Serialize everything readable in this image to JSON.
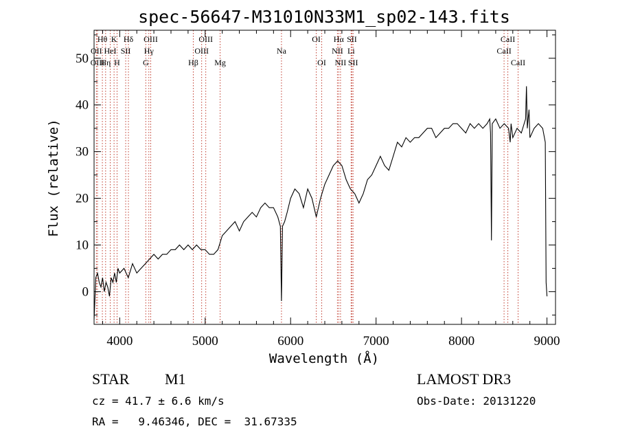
{
  "chart_data": {
    "type": "line",
    "title": "spec-56647-M31010N33M1_sp02-143.fits",
    "xlabel": "Wavelength (Å)",
    "ylabel": "Flux (relative)",
    "xlim": [
      3700,
      9100
    ],
    "ylim": [
      -7,
      56
    ],
    "xticks": [
      4000,
      5000,
      6000,
      7000,
      8000,
      9000
    ],
    "yticks": [
      0,
      10,
      20,
      30,
      40,
      50
    ],
    "spectrum": {
      "name": "flux",
      "x": [
        3700,
        3720,
        3740,
        3760,
        3780,
        3800,
        3820,
        3840,
        3860,
        3880,
        3900,
        3920,
        3940,
        3960,
        3980,
        4000,
        4050,
        4100,
        4150,
        4200,
        4250,
        4300,
        4350,
        4400,
        4450,
        4500,
        4550,
        4600,
        4650,
        4700,
        4750,
        4800,
        4850,
        4900,
        4950,
        5000,
        5050,
        5100,
        5150,
        5200,
        5250,
        5300,
        5350,
        5400,
        5450,
        5500,
        5550,
        5600,
        5650,
        5700,
        5750,
        5800,
        5850,
        5880,
        5893,
        5905,
        5930,
        5960,
        6000,
        6050,
        6100,
        6150,
        6200,
        6250,
        6300,
        6350,
        6400,
        6450,
        6500,
        6550,
        6600,
        6650,
        6700,
        6750,
        6800,
        6850,
        6900,
        6950,
        7000,
        7050,
        7100,
        7150,
        7200,
        7250,
        7300,
        7350,
        7400,
        7450,
        7500,
        7550,
        7600,
        7650,
        7700,
        7750,
        7800,
        7850,
        7900,
        7950,
        8000,
        8050,
        8100,
        8150,
        8200,
        8250,
        8300,
        8330,
        8340,
        8350,
        8360,
        8400,
        8450,
        8500,
        8550,
        8570,
        8580,
        8600,
        8650,
        8700,
        8750,
        8760,
        8770,
        8790,
        8800,
        8850,
        8900,
        8950,
        8980,
        8990,
        9000
      ],
      "y": [
        -6,
        3,
        4,
        2,
        1,
        3,
        0,
        2,
        1,
        -1,
        3,
        2,
        4,
        2,
        5,
        4,
        5,
        3,
        6,
        4,
        5,
        6,
        7,
        8,
        7,
        8,
        8,
        9,
        9,
        10,
        9,
        10,
        9,
        10,
        9,
        9,
        8,
        8,
        9,
        12,
        13,
        14,
        15,
        13,
        15,
        16,
        17,
        16,
        18,
        19,
        18,
        18,
        16,
        14,
        -2,
        14,
        15,
        17,
        20,
        22,
        21,
        18,
        22,
        20,
        16,
        20,
        23,
        25,
        27,
        28,
        27,
        24,
        22,
        21,
        19,
        21,
        24,
        25,
        27,
        29,
        27,
        26,
        29,
        32,
        31,
        33,
        32,
        33,
        33,
        34,
        35,
        35,
        33,
        34,
        35,
        35,
        36,
        36,
        35,
        34,
        36,
        35,
        36,
        35,
        36,
        37,
        34,
        11,
        36,
        37,
        35,
        36,
        35,
        32,
        36,
        33,
        35,
        34,
        37,
        44,
        35,
        39,
        33,
        35,
        36,
        35,
        32,
        2,
        -1
      ]
    },
    "spectral_lines": [
      {
        "label": "Hθ",
        "x": 3797,
        "row": 0
      },
      {
        "label": "OII",
        "x": 3727,
        "row": 1
      },
      {
        "label": "OIII",
        "x": 3740,
        "row": 2
      },
      {
        "label": "Hη",
        "x": 3835,
        "row": 2
      },
      {
        "label": "K",
        "x": 3934,
        "row": 0
      },
      {
        "label": "HeI",
        "x": 3889,
        "row": 1
      },
      {
        "label": "SII",
        "x": 4070,
        "row": 1
      },
      {
        "label": "H",
        "x": 3969,
        "row": 2
      },
      {
        "label": "Hδ",
        "x": 4102,
        "row": 0
      },
      {
        "label": "OIII",
        "x": 4363,
        "row": 0
      },
      {
        "label": "Hγ",
        "x": 4341,
        "row": 1
      },
      {
        "label": "G",
        "x": 4305,
        "row": 2
      },
      {
        "label": "Hβ",
        "x": 4861,
        "row": 2
      },
      {
        "label": "OIII",
        "x": 5007,
        "row": 0
      },
      {
        "label": "OIII",
        "x": 4959,
        "row": 1
      },
      {
        "label": "Mg",
        "x": 5175,
        "row": 2
      },
      {
        "label": "Na",
        "x": 5893,
        "row": 1
      },
      {
        "label": "OI",
        "x": 6300,
        "row": 0
      },
      {
        "label": "OI",
        "x": 6364,
        "row": 2
      },
      {
        "label": "Hα",
        "x": 6563,
        "row": 0
      },
      {
        "label": "SII",
        "x": 6717,
        "row": 0
      },
      {
        "label": "NII",
        "x": 6548,
        "row": 1
      },
      {
        "label": "Li",
        "x": 6708,
        "row": 1
      },
      {
        "label": "NII",
        "x": 6584,
        "row": 2
      },
      {
        "label": "SII",
        "x": 6731,
        "row": 2
      },
      {
        "label": "CaII",
        "x": 8542,
        "row": 0
      },
      {
        "label": "CaII",
        "x": 8498,
        "row": 1
      },
      {
        "label": "CaII",
        "x": 8662,
        "row": 2
      }
    ]
  },
  "info": {
    "object_type": "STAR",
    "subclass": "M1",
    "survey": "LAMOST DR3",
    "cz": "cz = 41.7 ± 6.6 km/s",
    "obs_date": "Obs-Date: 20131220",
    "coords": "RA =   9.46346, DEC =  31.67335"
  }
}
